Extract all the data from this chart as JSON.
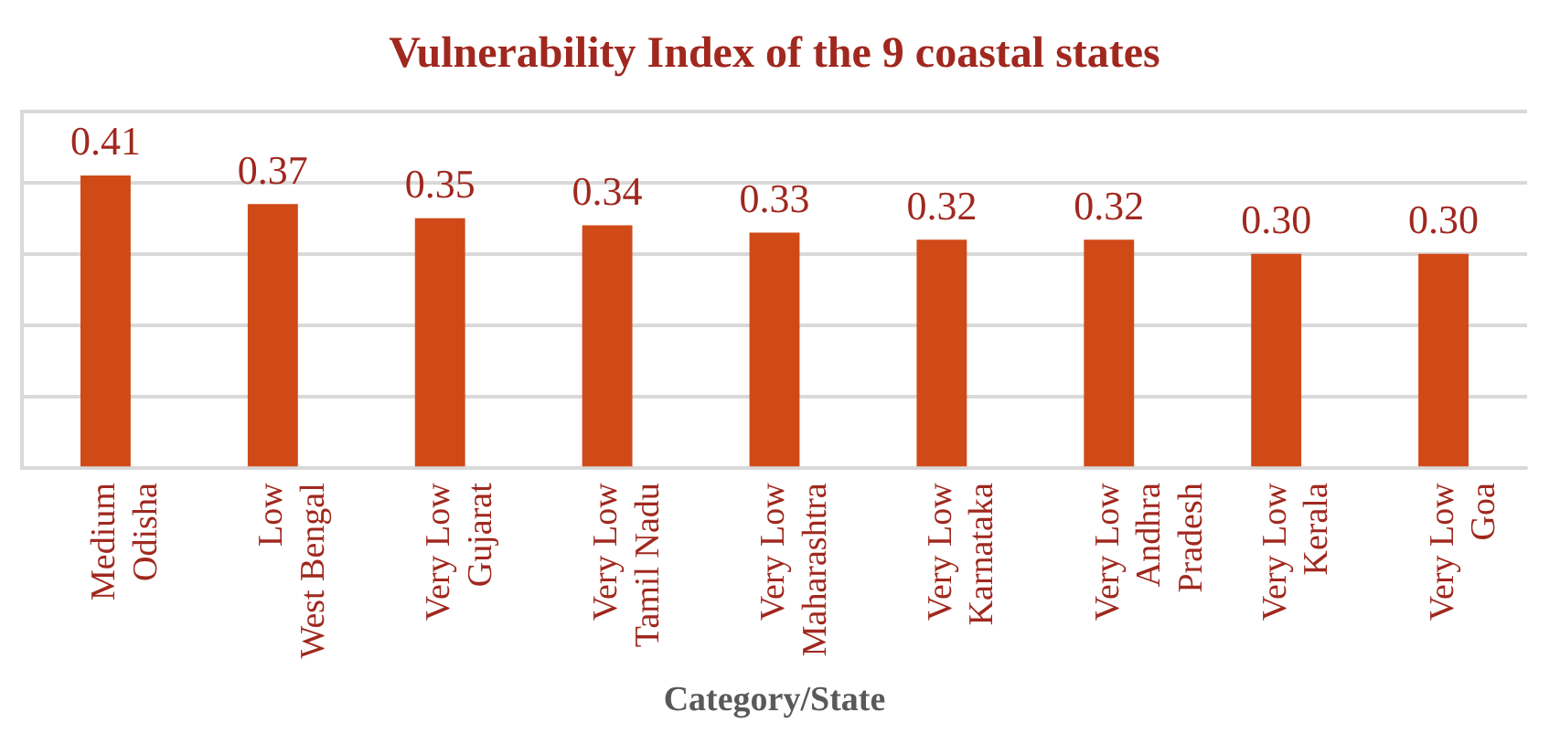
{
  "chart_data": {
    "type": "bar",
    "title": "Vulnerability Index of the 9 coastal states",
    "xlabel": "Category/State",
    "categories": [
      "Medium\nOdisha",
      "Low\nWest Bengal",
      "Very Low\nGujarat",
      "Very Low\nTamil Nadu",
      "Very Low\nMaharashtra",
      "Very Low\nKarnataka",
      "Very Low\nAndhra\nPradesh",
      "Very Low\nKerala",
      "Very Low\nGoa"
    ],
    "values": [
      0.41,
      0.37,
      0.35,
      0.34,
      0.33,
      0.32,
      0.32,
      0.3,
      0.3
    ],
    "value_labels": [
      "0.41",
      "0.37",
      "0.35",
      "0.34",
      "0.33",
      "0.32",
      "0.32",
      "0.30",
      "0.30"
    ],
    "color": "#d04a17",
    "grid": "y",
    "tick_labels": "x",
    "ylim": [
      0,
      0.5
    ],
    "yticks": [
      {
        "value": 0,
        "label": null
      },
      {
        "value": 0.1,
        "label": null
      },
      {
        "value": 0.2,
        "label": null
      },
      {
        "value": 0.3,
        "label": null
      },
      {
        "value": 0.4,
        "label": null
      },
      {
        "value": 0.5,
        "label": null
      }
    ]
  }
}
